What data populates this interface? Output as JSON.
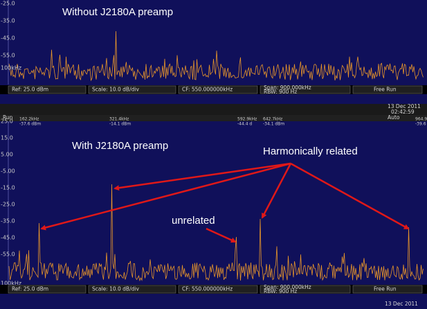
{
  "top_panel": {
    "annotation": "Without J2180A preamp",
    "y_labels": [
      "-25.0",
      "-35.0",
      "-45.0",
      "-55.0"
    ],
    "freq_label": "100kHz",
    "status": {
      "ref": "Ref: 25.0 dBm",
      "scale": "Scale: 10.0 dB/div",
      "cf": "CF: 550.000000kHz",
      "span": "Span: 900.000kHz",
      "rbw": "RBW: 900 Hz",
      "mode": "Free Run"
    },
    "date": "13 Dec 2011",
    "time": "02:42:59"
  },
  "bottom_panel": {
    "state": "Run",
    "trigger": "Auto",
    "markers": [
      {
        "freq": "162.2kHz",
        "level": "-37.6 dBm"
      },
      {
        "freq": "321.4kHz",
        "level": "-14.1 dBm"
      },
      {
        "freq": "592.9kHz",
        "level": "-44.4 d"
      },
      {
        "freq": "642.7kHz",
        "level": "-34.1 dBm"
      },
      {
        "freq": "964.9",
        "level": "-39.6"
      }
    ],
    "annotation": "With J2180A preamp",
    "callout_harmonic": "Harmonically related",
    "callout_unrelated": "unrelated",
    "y_labels": [
      "25.0",
      "15.0",
      "5.00",
      "-5.00",
      "-15.0",
      "-25.0",
      "-35.0",
      "-45.0",
      "-55.0"
    ],
    "freq_label": "100kHz",
    "status": {
      "ref": "Ref: 25.0 dBm",
      "scale": "Scale: 10.0 dB/div",
      "cf": "CF: 550.000000kHz",
      "span": "Span: 900.000kHz",
      "rbw": "RBW: 900 Hz",
      "mode": "Free Run"
    },
    "date": "13 Dec 2011"
  }
}
